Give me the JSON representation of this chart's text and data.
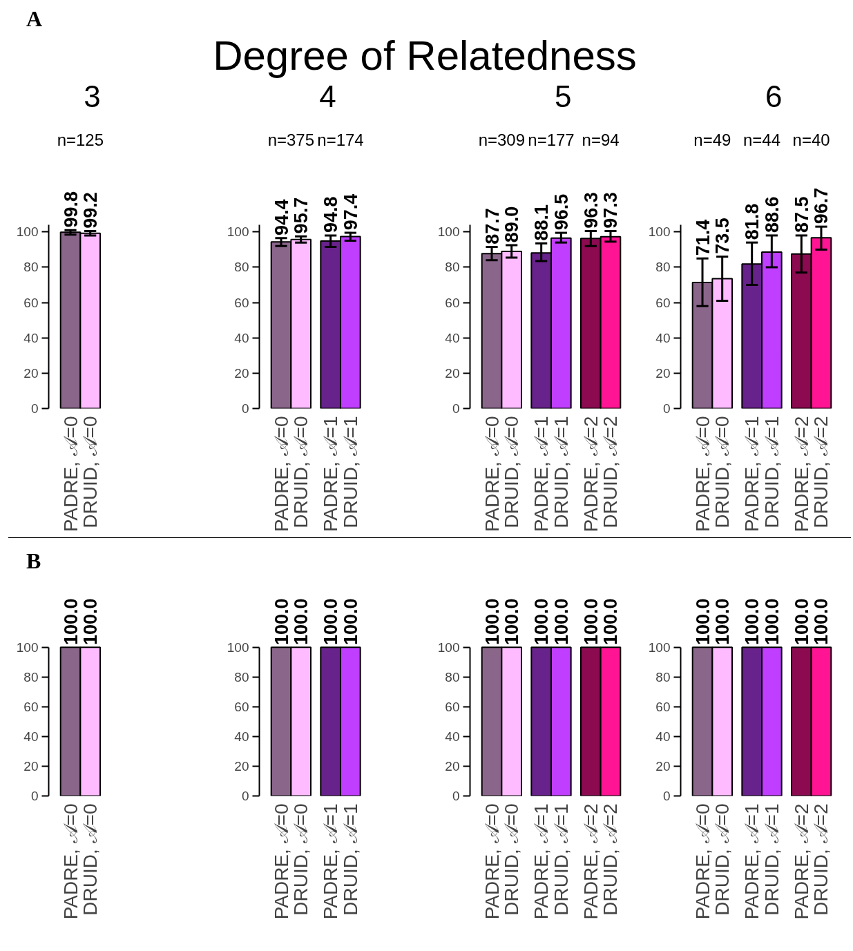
{
  "chart_data": [
    {
      "type": "bar",
      "title": "3",
      "annotations": [
        "A",
        "Degree of Relatedness",
        "n=125"
      ],
      "categories": [
        "PADRE, 𝒜=0",
        "DRUID, 𝒜=0"
      ],
      "values": [
        99.8,
        99.2
      ],
      "colors": [
        "#8b668b",
        "#ffbbff"
      ],
      "errors": [
        [
          98.5,
          101
        ],
        [
          98,
          100.5
        ]
      ],
      "value_labels": [
        "99.8",
        "99.2"
      ],
      "ylim": [
        0,
        104
      ],
      "yticks": [
        0,
        20,
        40,
        60,
        80,
        100
      ]
    },
    {
      "type": "bar",
      "title": "4",
      "annotations": [
        "n=375",
        "n=174"
      ],
      "categories": [
        "PADRE, 𝒜=0",
        "DRUID, 𝒜=0",
        "PADRE, 𝒜=1",
        "DRUID, 𝒜=1"
      ],
      "values": [
        94.4,
        95.7,
        94.8,
        97.4
      ],
      "colors": [
        "#8b668b",
        "#ffbbff",
        "#68228b",
        "#bf3eff"
      ],
      "errors": [
        [
          92,
          96.5
        ],
        [
          94,
          97.5
        ],
        [
          91.5,
          98
        ],
        [
          95,
          99.5
        ]
      ],
      "value_labels": [
        "94.4",
        "95.7",
        "94.8",
        "97.4"
      ],
      "ylim": [
        0,
        104
      ],
      "yticks": [
        0,
        20,
        40,
        60,
        80,
        100
      ]
    },
    {
      "type": "bar",
      "title": "5",
      "annotations": [
        "n=309",
        "n=177",
        "n=94"
      ],
      "categories": [
        "PADRE, 𝒜=0",
        "DRUID, 𝒜=0",
        "PADRE, 𝒜=1",
        "DRUID, 𝒜=1",
        "PADRE, 𝒜=2",
        "DRUID, 𝒜=2"
      ],
      "values": [
        87.7,
        89.0,
        88.1,
        96.5,
        96.3,
        97.3
      ],
      "value_labels": [
        "87.7",
        "89.0",
        "88.1",
        "96.5",
        "96.3",
        "97.3"
      ],
      "colors": [
        "#8b668b",
        "#ffbbff",
        "#68228b",
        "#bf3eff",
        "#8b0a50",
        "#ff1493"
      ],
      "errors": [
        [
          84,
          91.5
        ],
        [
          85.5,
          92.5
        ],
        [
          83.5,
          93.5
        ],
        [
          94,
          99.5
        ],
        [
          92,
          100.5
        ],
        [
          94.5,
          100.5
        ]
      ],
      "ylim": [
        0,
        104
      ],
      "yticks": [
        0,
        20,
        40,
        60,
        80,
        100
      ]
    },
    {
      "type": "bar",
      "title": "6",
      "annotations": [
        "n=49",
        "n=44",
        "n=40"
      ],
      "categories": [
        "PADRE, 𝒜=0",
        "DRUID, 𝒜=0",
        "PADRE, 𝒜=1",
        "DRUID, 𝒜=1",
        "PADRE, 𝒜=2",
        "DRUID, 𝒜=2"
      ],
      "values": [
        71.4,
        73.5,
        81.8,
        88.6,
        87.5,
        96.7
      ],
      "colors": [
        "#8b668b",
        "#ffbbff",
        "#68228b",
        "#bf3eff",
        "#8b0a50",
        "#ff1493"
      ],
      "errors": [
        [
          58,
          85
        ],
        [
          61,
          86
        ],
        [
          70,
          94
        ],
        [
          80,
          98
        ],
        [
          77,
          98
        ],
        [
          90,
          103
        ]
      ],
      "value_labels": [
        "71.4",
        "73.5",
        "81.8",
        "88.6",
        "87.5",
        "96.7"
      ],
      "ylim": [
        0,
        104
      ],
      "yticks": [
        0,
        20,
        40,
        60,
        80,
        100
      ]
    },
    {
      "type": "bar",
      "annotations": [
        "B"
      ],
      "categories": [
        "PADRE, 𝒜=0",
        "DRUID, 𝒜=0"
      ],
      "values": [
        100.0,
        100.0
      ],
      "colors": [
        "#8b668b",
        "#ffbbff"
      ],
      "value_labels": [
        "100.0",
        "100.0"
      ],
      "ylim": [
        0,
        100
      ],
      "yticks": [
        0,
        20,
        40,
        60,
        80,
        100
      ]
    },
    {
      "type": "bar",
      "categories": [
        "PADRE, 𝒜=0",
        "DRUID, 𝒜=0",
        "PADRE, 𝒜=1",
        "DRUID, 𝒜=1"
      ],
      "values": [
        100.0,
        100.0,
        100.0,
        100.0
      ],
      "colors": [
        "#8b668b",
        "#ffbbff",
        "#68228b",
        "#bf3eff"
      ],
      "value_labels": [
        "100.0",
        "100.0",
        "100.0",
        "100.0"
      ],
      "ylim": [
        0,
        100
      ],
      "yticks": [
        0,
        20,
        40,
        60,
        80,
        100
      ]
    },
    {
      "type": "bar",
      "categories": [
        "PADRE, 𝒜=0",
        "DRUID, 𝒜=0",
        "PADRE, 𝒜=1",
        "DRUID, 𝒜=1",
        "PADRE, 𝒜=2",
        "DRUID, 𝒜=2"
      ],
      "values": [
        100.0,
        100.0,
        100.0,
        100.0,
        100.0,
        100.0
      ],
      "colors": [
        "#8b668b",
        "#ffbbff",
        "#68228b",
        "#bf3eff",
        "#8b0a50",
        "#ff1493"
      ],
      "value_labels": [
        "100.0",
        "100.0",
        "100.0",
        "100.0",
        "100.0",
        "100.0"
      ],
      "ylim": [
        0,
        100
      ],
      "yticks": [
        0,
        20,
        40,
        60,
        80,
        100
      ]
    },
    {
      "type": "bar",
      "categories": [
        "PADRE, 𝒜=0",
        "DRUID, 𝒜=0",
        "PADRE, 𝒜=1",
        "DRUID, 𝒜=1",
        "PADRE, 𝒜=2",
        "DRUID, 𝒜=2"
      ],
      "values": [
        100.0,
        100.0,
        100.0,
        100.0,
        100.0,
        100.0
      ],
      "colors": [
        "#8b668b",
        "#ffbbff",
        "#68228b",
        "#bf3eff",
        "#8b0a50",
        "#ff1493"
      ],
      "value_labels": [
        "100.0",
        "100.0",
        "100.0",
        "100.0",
        "100.0",
        "100.0"
      ],
      "ylim": [
        0,
        100
      ],
      "yticks": [
        0,
        20,
        40,
        60,
        80,
        100
      ]
    }
  ]
}
